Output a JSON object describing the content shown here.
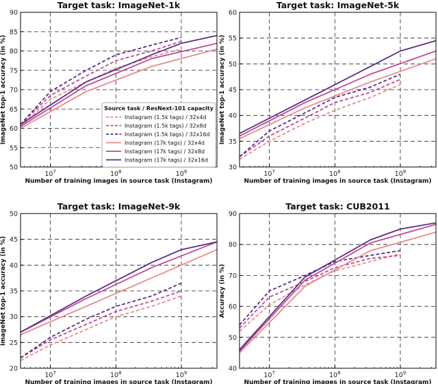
{
  "colors": {
    "light": "#e88a8a",
    "medium": "#bf4a8e",
    "dark": "#5b2a86",
    "grid": "#222222",
    "axis": "#000000"
  },
  "legend": {
    "title": "Source task / ResNext-101 capacity",
    "entries": [
      {
        "label": "Instagram (1.5k tags) / 32x4d",
        "color": "light",
        "dashed": true
      },
      {
        "label": "Instagram (1.5k tags) / 32x8d",
        "color": "medium",
        "dashed": true
      },
      {
        "label": "Instagram (1.5k tags) / 32x16d",
        "color": "dark",
        "dashed": true
      },
      {
        "label": "Instagram (17k tags) / 32x4d",
        "color": "light",
        "dashed": false
      },
      {
        "label": "Instagram (17k tags) / 32x8d",
        "color": "medium",
        "dashed": false
      },
      {
        "label": "Instagram (17k tags) / 32x16d",
        "color": "dark",
        "dashed": false
      }
    ]
  },
  "chart_data": [
    {
      "type": "line",
      "title": "Target task: ImageNet-1k",
      "xlabel": "Number of training images in source task (Instagram)",
      "ylabel": "ImageNet top-1 accuracy (in %)",
      "xscale": "log",
      "xlim": [
        3500000,
        3500000000
      ],
      "ylim": [
        50,
        90
      ],
      "xticks": [
        10000000,
        100000000,
        1000000000
      ],
      "xticklabels": [
        "10^7",
        "10^8",
        "10^9"
      ],
      "yticks": [
        50,
        55,
        60,
        65,
        70,
        75,
        80,
        85,
        90
      ],
      "grid": true,
      "legend": "center-right",
      "series": [
        {
          "name": "Instagram (1.5k tags) / 32x4d",
          "color": "light",
          "dashed": true,
          "x": [
            3500000,
            10000000,
            35000000,
            100000000,
            350000000,
            1000000000
          ],
          "y": [
            60.5,
            67.5,
            72.0,
            75.5,
            78.5,
            80.5
          ]
        },
        {
          "name": "Instagram (1.5k tags) / 32x8d",
          "color": "medium",
          "dashed": true,
          "x": [
            3500000,
            10000000,
            35000000,
            100000000,
            350000000,
            1000000000
          ],
          "y": [
            61.0,
            68.5,
            73.5,
            77.5,
            80.0,
            82.5
          ]
        },
        {
          "name": "Instagram (1.5k tags) / 32x16d",
          "color": "dark",
          "dashed": true,
          "x": [
            3500000,
            10000000,
            35000000,
            100000000,
            350000000,
            1000000000
          ],
          "y": [
            61.0,
            69.5,
            75.0,
            79.0,
            81.5,
            83.5
          ]
        },
        {
          "name": "Instagram (17k tags) / 32x4d",
          "color": "light",
          "dashed": false,
          "x": [
            3500000,
            35000000,
            350000000,
            3500000000
          ],
          "y": [
            60.0,
            69.5,
            76.0,
            80.5
          ]
        },
        {
          "name": "Instagram (17k tags) / 32x8d",
          "color": "medium",
          "dashed": false,
          "x": [
            3500000,
            35000000,
            350000000,
            3500000000
          ],
          "y": [
            60.5,
            71.0,
            78.0,
            82.0
          ]
        },
        {
          "name": "Instagram (17k tags) / 32x16d",
          "color": "dark",
          "dashed": false,
          "x": [
            3500000,
            35000000,
            350000000,
            1000000000,
            3500000000
          ],
          "y": [
            61.0,
            72.0,
            79.0,
            82.0,
            84.0
          ]
        }
      ]
    },
    {
      "type": "line",
      "title": "Target task: ImageNet-5k",
      "xlabel": "Number of training images in source task (Instagram)",
      "ylabel": "ImageNet top-1 accuracy (in %)",
      "xscale": "log",
      "xlim": [
        3500000,
        3500000000
      ],
      "ylim": [
        30,
        60
      ],
      "xticks": [
        10000000,
        100000000,
        1000000000
      ],
      "xticklabels": [
        "10^7",
        "10^8",
        "10^9"
      ],
      "yticks": [
        30,
        35,
        40,
        45,
        50,
        55,
        60
      ],
      "grid": true,
      "series": [
        {
          "name": "Instagram (1.5k tags) / 32x4d",
          "color": "light",
          "dashed": true,
          "x": [
            3500000,
            10000000,
            35000000,
            100000000,
            350000000,
            1000000000
          ],
          "y": [
            31.5,
            35.0,
            38.5,
            41.0,
            43.5,
            46.0
          ]
        },
        {
          "name": "Instagram (1.5k tags) / 32x8d",
          "color": "medium",
          "dashed": true,
          "x": [
            3500000,
            10000000,
            35000000,
            100000000,
            350000000,
            1000000000
          ],
          "y": [
            32.0,
            36.0,
            39.5,
            42.5,
            44.5,
            47.0
          ]
        },
        {
          "name": "Instagram (1.5k tags) / 32x16d",
          "color": "dark",
          "dashed": true,
          "x": [
            3500000,
            10000000,
            35000000,
            100000000,
            350000000,
            1000000000
          ],
          "y": [
            32.0,
            37.0,
            40.5,
            43.5,
            45.5,
            48.0
          ]
        },
        {
          "name": "Instagram (17k tags) / 32x4d",
          "color": "light",
          "dashed": false,
          "x": [
            3500000,
            35000000,
            350000000,
            3500000000
          ],
          "y": [
            35.5,
            41.5,
            46.5,
            51.0
          ]
        },
        {
          "name": "Instagram (17k tags) / 32x8d",
          "color": "medium",
          "dashed": false,
          "x": [
            3500000,
            35000000,
            350000000,
            3500000000
          ],
          "y": [
            36.0,
            42.5,
            48.0,
            52.5
          ]
        },
        {
          "name": "Instagram (17k tags) / 32x16d",
          "color": "dark",
          "dashed": false,
          "x": [
            3500000,
            35000000,
            350000000,
            1000000000,
            3500000000
          ],
          "y": [
            36.5,
            43.0,
            49.5,
            52.5,
            54.5
          ]
        }
      ]
    },
    {
      "type": "line",
      "title": "Target task: ImageNet-9k",
      "xlabel": "Number of training images in source task (Instagram)",
      "ylabel": "ImageNet top-1 accuracy (in %)",
      "xscale": "log",
      "xlim": [
        3500000,
        3500000000
      ],
      "ylim": [
        20,
        50
      ],
      "xticks": [
        10000000,
        100000000,
        1000000000
      ],
      "xticklabels": [
        "10^7",
        "10^8",
        "10^9"
      ],
      "yticks": [
        20,
        25,
        30,
        35,
        40,
        45,
        50
      ],
      "grid": true,
      "series": [
        {
          "name": "Instagram (1.5k tags) / 32x4d",
          "color": "light",
          "dashed": true,
          "x": [
            3500000,
            10000000,
            35000000,
            100000000,
            350000000,
            1000000000
          ],
          "y": [
            21.5,
            24.5,
            27.5,
            30.0,
            32.0,
            34.0
          ]
        },
        {
          "name": "Instagram (1.5k tags) / 32x8d",
          "color": "medium",
          "dashed": true,
          "x": [
            3500000,
            10000000,
            35000000,
            100000000,
            350000000,
            1000000000
          ],
          "y": [
            22.0,
            25.5,
            28.5,
            31.0,
            33.0,
            35.0
          ]
        },
        {
          "name": "Instagram (1.5k tags) / 32x16d",
          "color": "dark",
          "dashed": true,
          "x": [
            3500000,
            10000000,
            35000000,
            100000000,
            350000000,
            1000000000
          ],
          "y": [
            22.0,
            26.0,
            29.5,
            32.0,
            34.0,
            36.5
          ]
        },
        {
          "name": "Instagram (17k tags) / 32x4d",
          "color": "light",
          "dashed": false,
          "x": [
            3500000,
            35000000,
            350000000,
            3500000000
          ],
          "y": [
            26.5,
            32.0,
            37.5,
            43.0
          ]
        },
        {
          "name": "Instagram (17k tags) / 32x8d",
          "color": "medium",
          "dashed": false,
          "x": [
            3500000,
            35000000,
            350000000,
            3500000000
          ],
          "y": [
            27.0,
            33.5,
            39.5,
            44.5
          ]
        },
        {
          "name": "Instagram (17k tags) / 32x16d",
          "color": "dark",
          "dashed": false,
          "x": [
            3500000,
            35000000,
            350000000,
            1000000000,
            3500000000
          ],
          "y": [
            27.0,
            34.0,
            40.5,
            43.0,
            44.5
          ]
        }
      ]
    },
    {
      "type": "line",
      "title": "Target task: CUB2011",
      "xlabel": "Number of training images in source task (Instagram)",
      "ylabel": "Accuracy (in %)",
      "xscale": "log",
      "xlim": [
        3500000,
        3500000000
      ],
      "ylim": [
        40,
        90
      ],
      "xticks": [
        10000000,
        100000000,
        1000000000
      ],
      "xticklabels": [
        "10^7",
        "10^8",
        "10^9"
      ],
      "yticks": [
        40,
        50,
        60,
        70,
        80,
        90
      ],
      "grid": true,
      "series": [
        {
          "name": "Instagram (1.5k tags) / 32x4d",
          "color": "light",
          "dashed": true,
          "x": [
            3500000,
            10000000,
            35000000,
            100000000,
            350000000,
            1000000000
          ],
          "y": [
            52.0,
            60.5,
            67.0,
            71.5,
            74.5,
            77.0
          ]
        },
        {
          "name": "Instagram (1.5k tags) / 32x8d",
          "color": "medium",
          "dashed": true,
          "x": [
            3500000,
            10000000,
            35000000,
            100000000,
            350000000,
            1000000000
          ],
          "y": [
            53.0,
            63.0,
            68.0,
            72.5,
            75.5,
            76.5
          ]
        },
        {
          "name": "Instagram (1.5k tags) / 32x16d",
          "color": "dark",
          "dashed": true,
          "x": [
            3500000,
            10000000,
            35000000,
            100000000,
            350000000,
            1000000000
          ],
          "y": [
            54.0,
            65.0,
            70.0,
            74.5,
            76.5,
            78.0
          ]
        },
        {
          "name": "Instagram (17k tags) / 32x4d",
          "color": "light",
          "dashed": false,
          "x": [
            3500000,
            35000000,
            350000000,
            3500000000
          ],
          "y": [
            45.0,
            66.5,
            78.0,
            84.0
          ]
        },
        {
          "name": "Instagram (17k tags) / 32x8d",
          "color": "medium",
          "dashed": false,
          "x": [
            3500000,
            35000000,
            350000000,
            3500000000
          ],
          "y": [
            45.5,
            68.5,
            80.5,
            86.5
          ]
        },
        {
          "name": "Instagram (17k tags) / 32x16d",
          "color": "dark",
          "dashed": false,
          "x": [
            3500000,
            35000000,
            350000000,
            1000000000,
            3500000000
          ],
          "y": [
            46.0,
            69.5,
            81.5,
            85.0,
            87.0
          ]
        }
      ]
    }
  ]
}
